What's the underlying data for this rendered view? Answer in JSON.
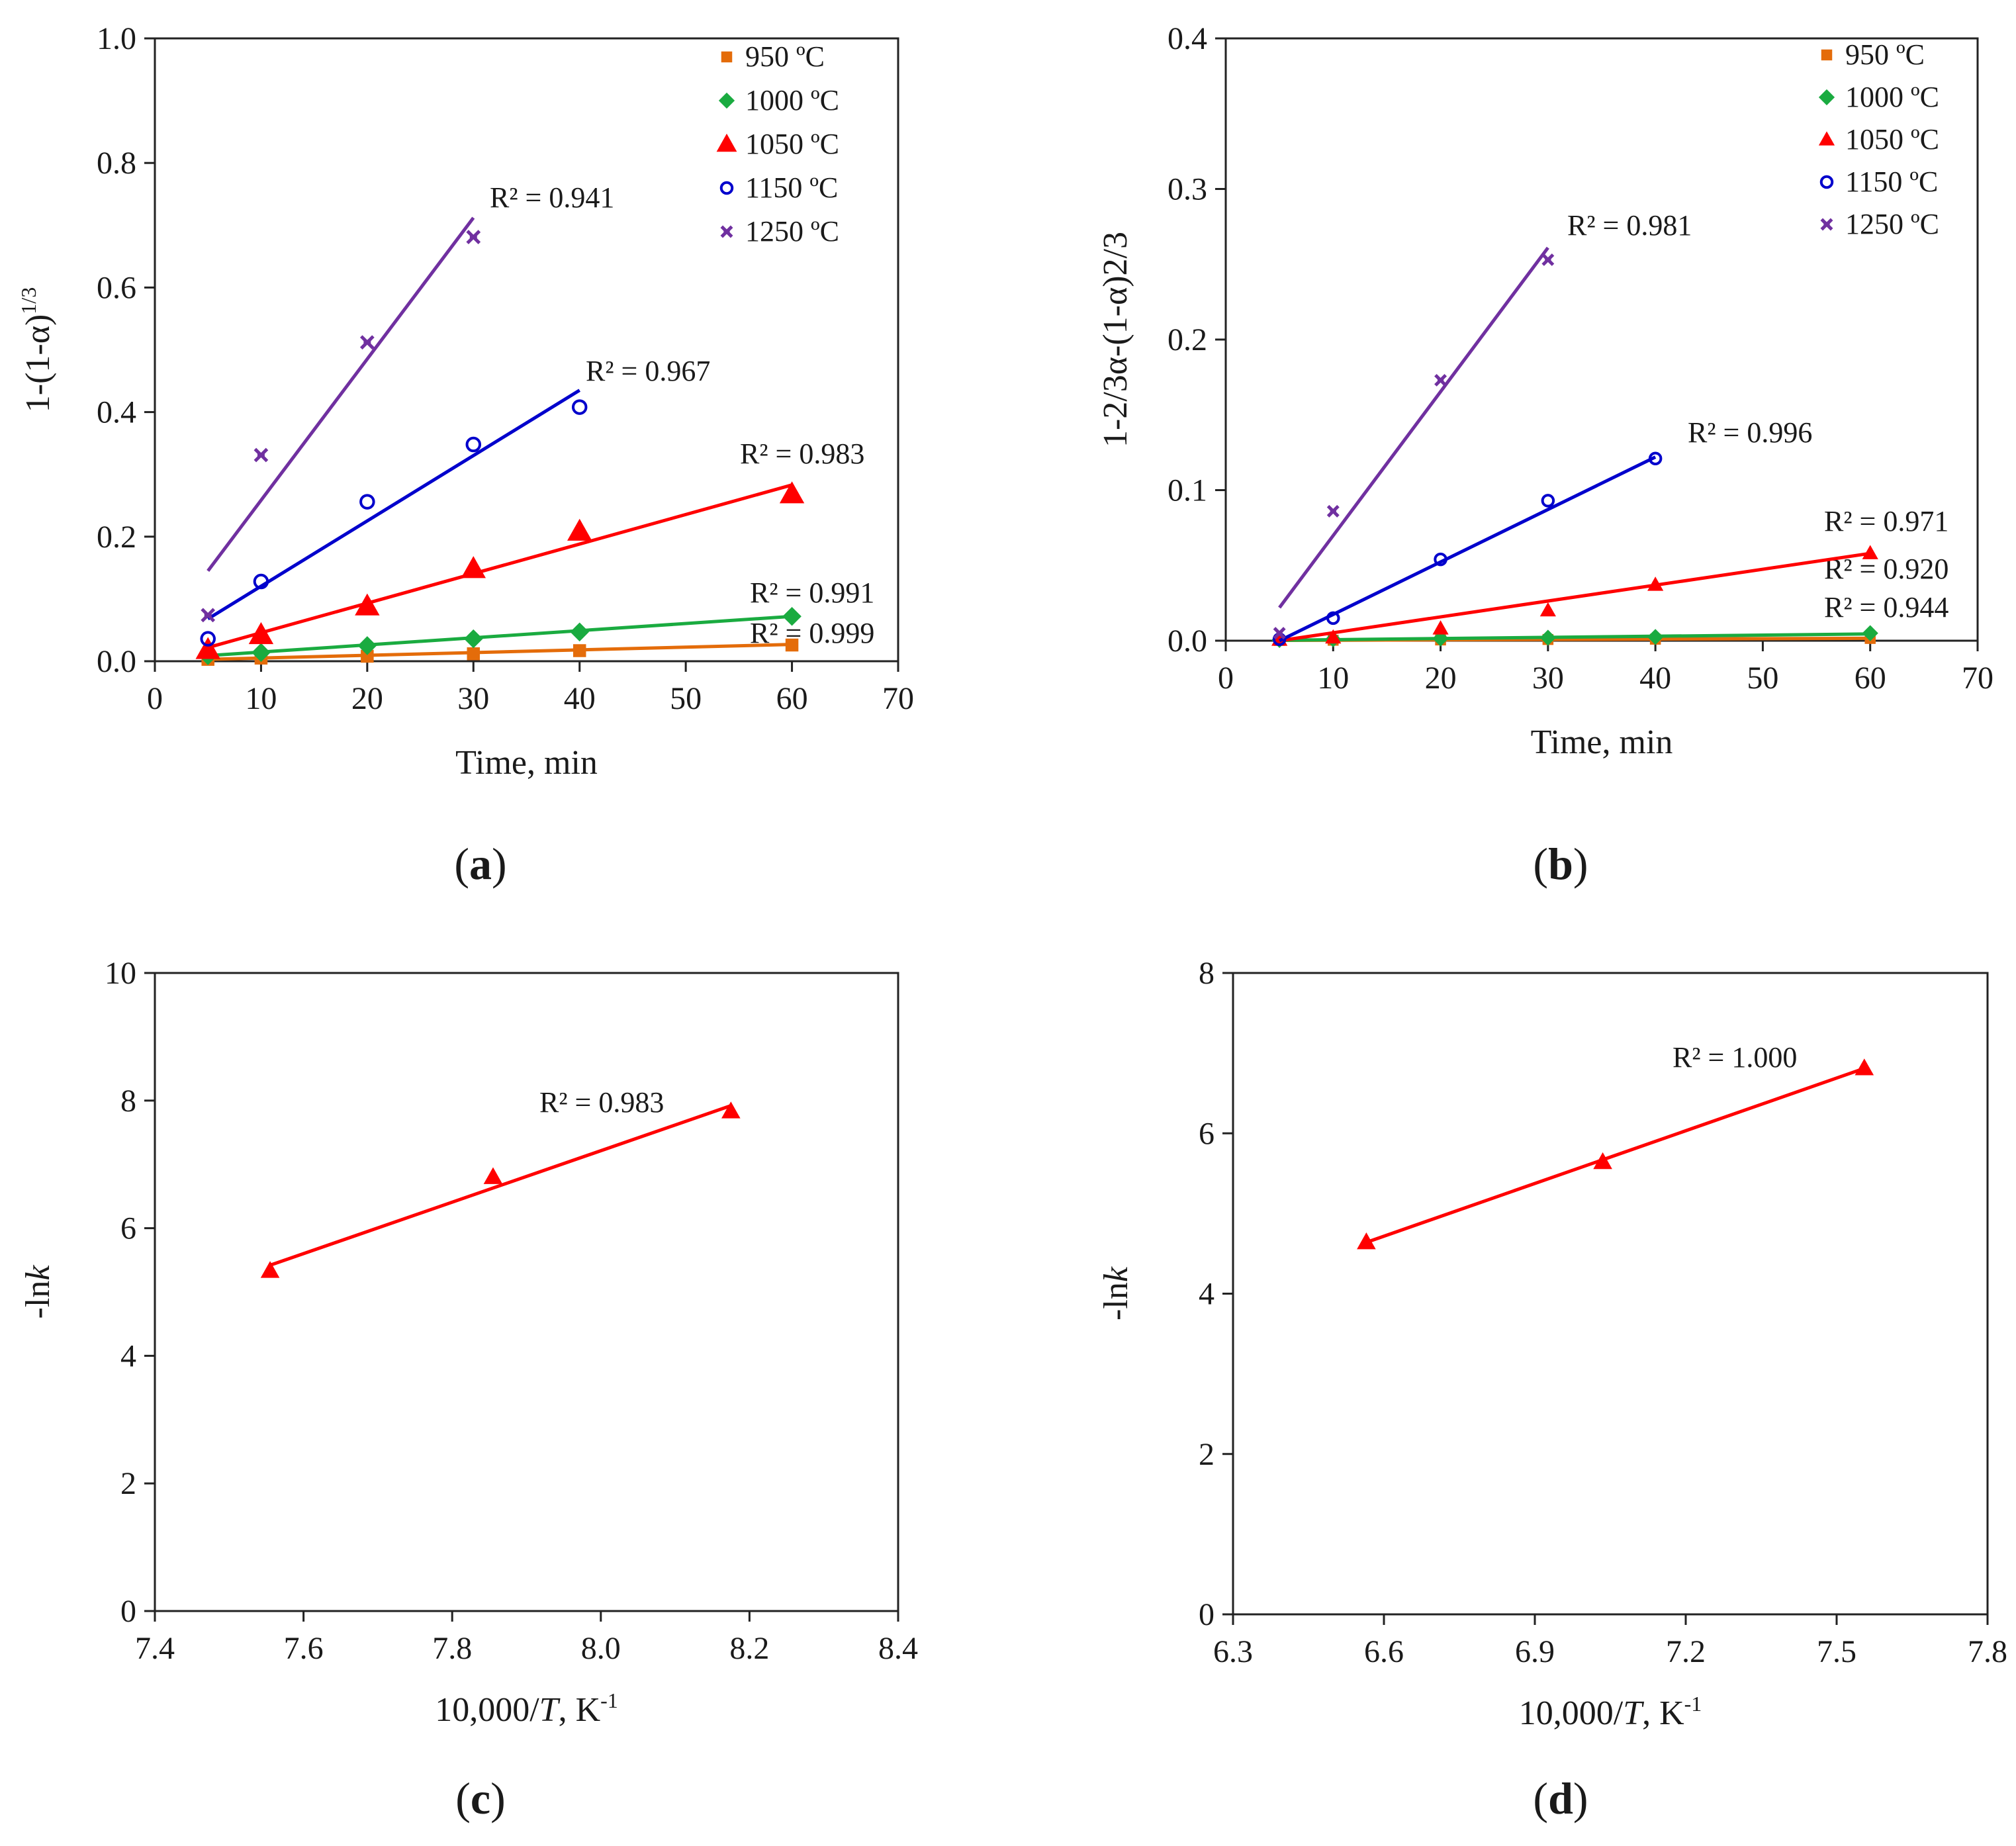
{
  "chart_data": [
    {
      "id": "a",
      "type": "scatter",
      "panel_label": "(a)",
      "xlabel": "Time, min",
      "ylabel": "1-(1-α)",
      "ylabel_sup": "1/3",
      "xlim": [
        0,
        70
      ],
      "ylim": [
        0,
        1.0
      ],
      "xticks": [
        0,
        10,
        20,
        30,
        40,
        50,
        60,
        70
      ],
      "yticks": [
        0,
        0.2,
        0.4,
        0.6,
        0.8,
        1.0
      ],
      "ytick_labels": [
        "0.0",
        "0.2",
        "0.4",
        "0.6",
        "0.8",
        "1.0"
      ],
      "legend_position": "top-right",
      "series": [
        {
          "name": "950 ºC",
          "color": "#e46c0a",
          "marker": "square",
          "x": [
            5,
            10,
            20,
            30,
            40,
            60
          ],
          "y": [
            0.003,
            0.005,
            0.008,
            0.012,
            0.017,
            0.026
          ],
          "fit": [
            [
              5,
              0.003
            ],
            [
              60,
              0.027
            ]
          ],
          "r2": "R² = 0.999"
        },
        {
          "name": "1000 ºC",
          "color": "#1aab40",
          "marker": "diamond",
          "x": [
            5,
            10,
            20,
            30,
            40,
            60
          ],
          "y": [
            0.009,
            0.014,
            0.025,
            0.036,
            0.047,
            0.072
          ],
          "fit": [
            [
              5,
              0.009
            ],
            [
              60,
              0.072
            ]
          ],
          "r2": "R² = 0.991"
        },
        {
          "name": "1050 ºC",
          "color": "#ff0000",
          "marker": "triangle",
          "x": [
            5,
            10,
            20,
            30,
            40,
            60
          ],
          "y": [
            0.018,
            0.042,
            0.088,
            0.148,
            0.208,
            0.268
          ],
          "fit": [
            [
              5,
              0.022
            ],
            [
              60,
              0.283
            ]
          ],
          "r2": "R² = 0.983"
        },
        {
          "name": "1150 ºC",
          "color": "#0000cc",
          "marker": "circle",
          "x": [
            5,
            10,
            20,
            30,
            40
          ],
          "y": [
            0.036,
            0.128,
            0.256,
            0.348,
            0.408
          ],
          "fit": [
            [
              5,
              0.068
            ],
            [
              40,
              0.435
            ]
          ],
          "r2": "R² = 0.967"
        },
        {
          "name": "1250 ºC",
          "color": "#7030a0",
          "marker": "star",
          "x": [
            5,
            10,
            20,
            30
          ],
          "y": [
            0.074,
            0.331,
            0.512,
            0.681
          ],
          "fit": [
            [
              5,
              0.145
            ],
            [
              30,
              0.712
            ]
          ],
          "r2": "R² = 0.941"
        }
      ]
    },
    {
      "id": "b",
      "type": "scatter",
      "panel_label": "(b)",
      "xlabel": "Time, min",
      "ylabel": "1-2/3α-(1-α)2/3",
      "xlim": [
        0,
        70
      ],
      "ylim": [
        0,
        0.4
      ],
      "xticks": [
        0,
        10,
        20,
        30,
        40,
        50,
        60,
        70
      ],
      "yticks": [
        0,
        0.1,
        0.2,
        0.3,
        0.4
      ],
      "ytick_labels": [
        "0.0",
        "0.1",
        "0.2",
        "0.3",
        "0.4"
      ],
      "legend_position": "top-right",
      "series": [
        {
          "name": "950 ºC",
          "color": "#e46c0a",
          "marker": "square",
          "x": [
            5,
            10,
            20,
            30,
            40,
            60
          ],
          "y": [
            0.0002,
            0.0003,
            0.0005,
            0.0008,
            0.001,
            0.0015
          ],
          "fit": [
            [
              5,
              0.0002
            ],
            [
              60,
              0.0016
            ]
          ],
          "r2": "R² = 0.944"
        },
        {
          "name": "1000 ºC",
          "color": "#1aab40",
          "marker": "diamond",
          "x": [
            5,
            10,
            20,
            30,
            40,
            60
          ],
          "y": [
            0.0005,
            0.001,
            0.0015,
            0.002,
            0.0025,
            0.005
          ],
          "fit": [
            [
              5,
              0.0003
            ],
            [
              60,
              0.0045
            ]
          ],
          "r2": "R² = 0.920"
        },
        {
          "name": "1050 ºC",
          "color": "#ff0000",
          "marker": "triangle",
          "x": [
            5,
            10,
            20,
            30,
            40,
            60
          ],
          "y": [
            0.0005,
            0.002,
            0.008,
            0.02,
            0.037,
            0.058
          ],
          "fit": [
            [
              5,
              0.0
            ],
            [
              60,
              0.058
            ]
          ],
          "r2": "R² = 0.971"
        },
        {
          "name": "1150 ºC",
          "color": "#0000cc",
          "marker": "circle",
          "x": [
            5,
            10,
            20,
            30,
            40
          ],
          "y": [
            0.001,
            0.015,
            0.054,
            0.093,
            0.121
          ],
          "fit": [
            [
              5,
              0.0
            ],
            [
              40,
              0.122
            ]
          ],
          "r2": "R² = 0.996"
        },
        {
          "name": "1250 ºC",
          "color": "#7030a0",
          "marker": "star",
          "x": [
            5,
            10,
            20,
            30
          ],
          "y": [
            0.005,
            0.086,
            0.173,
            0.253
          ],
          "fit": [
            [
              5,
              0.022
            ],
            [
              30,
              0.261
            ]
          ],
          "r2": "R² = 0.981"
        }
      ]
    },
    {
      "id": "c",
      "type": "scatter",
      "panel_label": "(c)",
      "xlabel": "10,000/",
      "xlabel_italic": "T",
      "xlabel_unit": ", K",
      "xlabel_sup": "-1",
      "ylabel": "-ln",
      "ylabel_italic": "k",
      "xlim": [
        7.4,
        8.4
      ],
      "ylim": [
        0,
        10
      ],
      "xticks": [
        7.4,
        7.6,
        7.8,
        8.0,
        8.2,
        8.4
      ],
      "xtick_labels": [
        "7.4",
        "7.6",
        "7.8",
        "8.0",
        "8.2",
        "8.4"
      ],
      "yticks": [
        0,
        2,
        4,
        6,
        8,
        10
      ],
      "ytick_labels": [
        "0",
        "2",
        "4",
        "6",
        "8",
        "10"
      ],
      "series": [
        {
          "name": "-lnk",
          "color": "#ff0000",
          "marker": "triangle",
          "x": [
            7.555,
            7.855,
            8.175
          ],
          "y": [
            5.33,
            6.8,
            7.83
          ],
          "fit": [
            [
              7.555,
              5.42
            ],
            [
              8.175,
              7.92
            ]
          ],
          "r2": "R² = 0.983"
        }
      ]
    },
    {
      "id": "d",
      "type": "scatter",
      "panel_label": "(d)",
      "xlabel": "10,000/",
      "xlabel_italic": "T",
      "xlabel_unit": ", K",
      "xlabel_sup": "-1",
      "ylabel": "-ln",
      "ylabel_italic": "k",
      "xlim": [
        6.3,
        7.8
      ],
      "ylim": [
        0,
        8
      ],
      "xticks": [
        6.3,
        6.6,
        6.9,
        7.2,
        7.5,
        7.8
      ],
      "xtick_labels": [
        "6.3",
        "6.6",
        "6.9",
        "7.2",
        "7.5",
        "7.8"
      ],
      "yticks": [
        0,
        2,
        4,
        6,
        8
      ],
      "ytick_labels": [
        "0",
        "2",
        "4",
        "6",
        "8"
      ],
      "series": [
        {
          "name": "-lnk",
          "color": "#ff0000",
          "marker": "triangle",
          "x": [
            6.565,
            7.035,
            7.555
          ],
          "y": [
            4.64,
            5.64,
            6.81
          ],
          "fit": [
            [
              6.565,
              4.64
            ],
            [
              7.555,
              6.81
            ]
          ],
          "r2": "R² = 1.000"
        }
      ]
    }
  ]
}
